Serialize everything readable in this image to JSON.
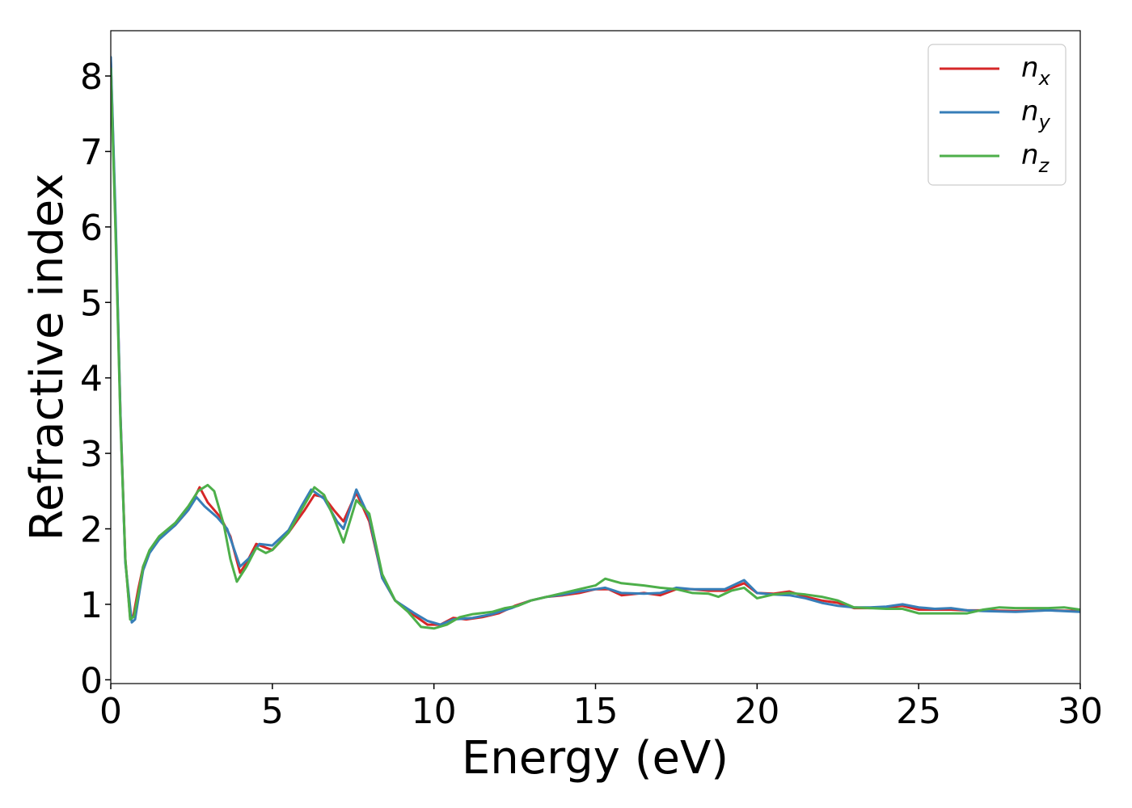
{
  "chart_data": {
    "type": "line",
    "title": "",
    "xlabel": "Energy (eV)",
    "ylabel": "Refractive index",
    "xlim": [
      0,
      30
    ],
    "ylim": [
      -0.05,
      8.6
    ],
    "xticks": [
      "0",
      "5",
      "10",
      "15",
      "20",
      "25",
      "30"
    ],
    "yticks": [
      "0",
      "1",
      "2",
      "3",
      "4",
      "5",
      "6",
      "7",
      "8"
    ],
    "grid": false,
    "legend_position": "top-right",
    "series": [
      {
        "name": "n",
        "subscript": "x",
        "color": "#d62728",
        "points": [
          [
            0,
            8.2
          ],
          [
            0.15,
            6.0
          ],
          [
            0.3,
            3.5
          ],
          [
            0.45,
            1.6
          ],
          [
            0.6,
            0.82
          ],
          [
            0.7,
            0.85
          ],
          [
            0.85,
            1.2
          ],
          [
            1.0,
            1.5
          ],
          [
            1.2,
            1.7
          ],
          [
            1.5,
            1.88
          ],
          [
            2.0,
            2.05
          ],
          [
            2.4,
            2.25
          ],
          [
            2.75,
            2.55
          ],
          [
            3.0,
            2.35
          ],
          [
            3.4,
            2.15
          ],
          [
            3.7,
            1.9
          ],
          [
            4.0,
            1.42
          ],
          [
            4.2,
            1.55
          ],
          [
            4.5,
            1.8
          ],
          [
            4.8,
            1.75
          ],
          [
            5.0,
            1.72
          ],
          [
            5.5,
            1.95
          ],
          [
            6.0,
            2.25
          ],
          [
            6.3,
            2.45
          ],
          [
            6.6,
            2.42
          ],
          [
            6.9,
            2.25
          ],
          [
            7.2,
            2.1
          ],
          [
            7.6,
            2.48
          ],
          [
            8.0,
            2.1
          ],
          [
            8.4,
            1.35
          ],
          [
            8.8,
            1.05
          ],
          [
            9.4,
            0.85
          ],
          [
            9.8,
            0.73
          ],
          [
            10.2,
            0.73
          ],
          [
            10.6,
            0.82
          ],
          [
            11.0,
            0.8
          ],
          [
            11.5,
            0.83
          ],
          [
            12.0,
            0.88
          ],
          [
            12.5,
            0.98
          ],
          [
            13.0,
            1.05
          ],
          [
            13.5,
            1.1
          ],
          [
            14.0,
            1.12
          ],
          [
            14.5,
            1.15
          ],
          [
            15.0,
            1.2
          ],
          [
            15.4,
            1.2
          ],
          [
            15.8,
            1.12
          ],
          [
            16.5,
            1.15
          ],
          [
            17.0,
            1.12
          ],
          [
            17.5,
            1.2
          ],
          [
            18.0,
            1.2
          ],
          [
            18.5,
            1.18
          ],
          [
            19.0,
            1.18
          ],
          [
            19.6,
            1.28
          ],
          [
            20.0,
            1.15
          ],
          [
            20.5,
            1.14
          ],
          [
            21.0,
            1.17
          ],
          [
            21.5,
            1.1
          ],
          [
            22.0,
            1.05
          ],
          [
            22.5,
            1.02
          ],
          [
            23.0,
            0.95
          ],
          [
            23.5,
            0.95
          ],
          [
            24.0,
            0.96
          ],
          [
            24.5,
            0.98
          ],
          [
            25.0,
            0.93
          ],
          [
            25.5,
            0.93
          ],
          [
            26.0,
            0.93
          ],
          [
            26.5,
            0.92
          ],
          [
            27.0,
            0.92
          ],
          [
            28.0,
            0.91
          ],
          [
            29.0,
            0.92
          ],
          [
            30.0,
            0.91
          ]
        ]
      },
      {
        "name": "n",
        "subscript": "y",
        "color": "#377eb8",
        "points": [
          [
            0,
            8.25
          ],
          [
            0.15,
            6.1
          ],
          [
            0.3,
            3.5
          ],
          [
            0.45,
            1.55
          ],
          [
            0.65,
            0.76
          ],
          [
            0.75,
            0.8
          ],
          [
            0.9,
            1.2
          ],
          [
            1.0,
            1.45
          ],
          [
            1.2,
            1.68
          ],
          [
            1.5,
            1.86
          ],
          [
            2.0,
            2.05
          ],
          [
            2.4,
            2.25
          ],
          [
            2.65,
            2.42
          ],
          [
            2.9,
            2.3
          ],
          [
            3.3,
            2.15
          ],
          [
            3.6,
            2.0
          ],
          [
            4.0,
            1.5
          ],
          [
            4.3,
            1.62
          ],
          [
            4.6,
            1.8
          ],
          [
            5.0,
            1.78
          ],
          [
            5.5,
            1.98
          ],
          [
            5.9,
            2.3
          ],
          [
            6.2,
            2.52
          ],
          [
            6.6,
            2.4
          ],
          [
            7.0,
            2.1
          ],
          [
            7.2,
            2.0
          ],
          [
            7.6,
            2.52
          ],
          [
            8.0,
            2.15
          ],
          [
            8.4,
            1.35
          ],
          [
            8.8,
            1.05
          ],
          [
            9.4,
            0.88
          ],
          [
            9.8,
            0.78
          ],
          [
            10.2,
            0.73
          ],
          [
            10.6,
            0.8
          ],
          [
            11.2,
            0.82
          ],
          [
            11.8,
            0.87
          ],
          [
            12.4,
            0.95
          ],
          [
            13.0,
            1.05
          ],
          [
            13.5,
            1.1
          ],
          [
            14.0,
            1.13
          ],
          [
            14.5,
            1.17
          ],
          [
            15.0,
            1.2
          ],
          [
            15.3,
            1.22
          ],
          [
            15.8,
            1.15
          ],
          [
            16.5,
            1.14
          ],
          [
            17.0,
            1.15
          ],
          [
            17.5,
            1.22
          ],
          [
            18.0,
            1.2
          ],
          [
            18.5,
            1.2
          ],
          [
            19.0,
            1.2
          ],
          [
            19.6,
            1.32
          ],
          [
            20.0,
            1.15
          ],
          [
            20.5,
            1.13
          ],
          [
            21.0,
            1.12
          ],
          [
            21.5,
            1.08
          ],
          [
            22.0,
            1.02
          ],
          [
            22.5,
            0.98
          ],
          [
            23.0,
            0.96
          ],
          [
            23.5,
            0.96
          ],
          [
            24.0,
            0.97
          ],
          [
            24.5,
            1.0
          ],
          [
            25.0,
            0.96
          ],
          [
            25.5,
            0.94
          ],
          [
            26.0,
            0.95
          ],
          [
            26.5,
            0.92
          ],
          [
            27.0,
            0.91
          ],
          [
            28.0,
            0.9
          ],
          [
            29.0,
            0.92
          ],
          [
            30.0,
            0.9
          ]
        ]
      },
      {
        "name": "n",
        "subscript": "z",
        "color": "#4daf4a",
        "points": [
          [
            0,
            8.1
          ],
          [
            0.15,
            5.9
          ],
          [
            0.3,
            3.4
          ],
          [
            0.45,
            1.6
          ],
          [
            0.6,
            0.8
          ],
          [
            0.72,
            0.84
          ],
          [
            0.9,
            1.25
          ],
          [
            1.0,
            1.5
          ],
          [
            1.2,
            1.72
          ],
          [
            1.5,
            1.9
          ],
          [
            2.0,
            2.08
          ],
          [
            2.4,
            2.3
          ],
          [
            2.7,
            2.5
          ],
          [
            3.0,
            2.58
          ],
          [
            3.2,
            2.5
          ],
          [
            3.5,
            2.05
          ],
          [
            3.7,
            1.6
          ],
          [
            3.9,
            1.3
          ],
          [
            4.2,
            1.5
          ],
          [
            4.5,
            1.75
          ],
          [
            4.8,
            1.68
          ],
          [
            5.0,
            1.72
          ],
          [
            5.5,
            1.95
          ],
          [
            5.9,
            2.25
          ],
          [
            6.3,
            2.55
          ],
          [
            6.6,
            2.45
          ],
          [
            6.9,
            2.15
          ],
          [
            7.2,
            1.82
          ],
          [
            7.6,
            2.38
          ],
          [
            8.0,
            2.2
          ],
          [
            8.4,
            1.4
          ],
          [
            8.8,
            1.05
          ],
          [
            9.2,
            0.9
          ],
          [
            9.6,
            0.7
          ],
          [
            10.0,
            0.68
          ],
          [
            10.4,
            0.73
          ],
          [
            10.8,
            0.83
          ],
          [
            11.2,
            0.87
          ],
          [
            11.8,
            0.9
          ],
          [
            12.2,
            0.95
          ],
          [
            12.6,
            0.98
          ],
          [
            13.0,
            1.05
          ],
          [
            13.5,
            1.1
          ],
          [
            14.0,
            1.15
          ],
          [
            14.5,
            1.2
          ],
          [
            15.0,
            1.25
          ],
          [
            15.3,
            1.34
          ],
          [
            15.8,
            1.28
          ],
          [
            16.5,
            1.25
          ],
          [
            17.0,
            1.22
          ],
          [
            17.5,
            1.2
          ],
          [
            18.0,
            1.15
          ],
          [
            18.5,
            1.14
          ],
          [
            18.8,
            1.1
          ],
          [
            19.2,
            1.18
          ],
          [
            19.6,
            1.22
          ],
          [
            20.0,
            1.08
          ],
          [
            20.5,
            1.13
          ],
          [
            21.0,
            1.15
          ],
          [
            21.5,
            1.13
          ],
          [
            22.0,
            1.1
          ],
          [
            22.5,
            1.05
          ],
          [
            23.0,
            0.96
          ],
          [
            23.5,
            0.95
          ],
          [
            24.0,
            0.94
          ],
          [
            24.5,
            0.94
          ],
          [
            25.0,
            0.88
          ],
          [
            25.5,
            0.88
          ],
          [
            26.0,
            0.88
          ],
          [
            26.5,
            0.88
          ],
          [
            27.0,
            0.93
          ],
          [
            27.5,
            0.96
          ],
          [
            28.0,
            0.95
          ],
          [
            28.5,
            0.95
          ],
          [
            29.0,
            0.95
          ],
          [
            29.5,
            0.96
          ],
          [
            30.0,
            0.93
          ]
        ]
      }
    ]
  }
}
